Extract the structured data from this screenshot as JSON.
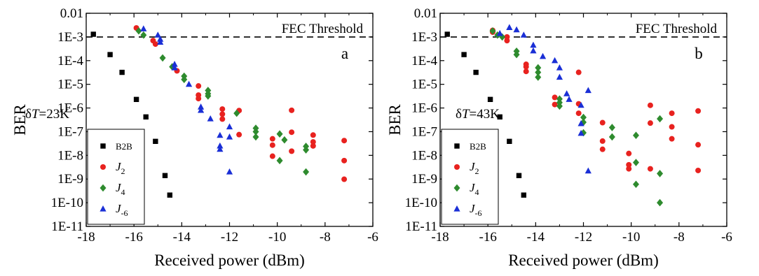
{
  "chart_data": [
    {
      "type": "scatter",
      "panel_label": "a",
      "annotation": "δT=23K",
      "threshold_label": "FEC Threshold",
      "threshold": 0.001,
      "xlabel": "Received power (dBm)",
      "ylabel": "BER",
      "xlim": [
        -18,
        -6
      ],
      "ylim": [
        1e-11,
        0.01
      ],
      "y_scale": "log",
      "x_ticks": [
        -18,
        -16,
        -14,
        -12,
        -10,
        -8,
        -6
      ],
      "x_tick_labels": [
        "-18",
        "-16",
        "-14",
        "-12",
        "-10",
        "-8",
        "-6"
      ],
      "y_ticks": [
        0.01,
        0.001,
        0.0001,
        1e-05,
        1e-06,
        1e-07,
        1e-08,
        1e-09,
        1e-10,
        1e-11
      ],
      "y_tick_labels": [
        "0.01",
        "1E-3",
        "1E-4",
        "1E-5",
        "1E-6",
        "1E-7",
        "1E-8",
        "1E-9",
        "1E-10",
        "1E-11"
      ],
      "legend_position": "bottom-left",
      "series": [
        {
          "name": "B2B",
          "marker": "square",
          "color": "#000000",
          "points": [
            [
              -17.7,
              0.0013
            ],
            [
              -17.0,
              0.00018
            ],
            [
              -16.5,
              3.2e-05
            ],
            [
              -15.9,
              2.3e-06
            ],
            [
              -15.5,
              4.2e-07
            ],
            [
              -15.1,
              3.9e-08
            ],
            [
              -14.7,
              1.4e-09
            ],
            [
              -14.5,
              2.1e-10
            ]
          ]
        },
        {
          "name": "J2",
          "marker": "circle",
          "color": "#e8221f",
          "points": [
            [
              -15.9,
              0.0024
            ],
            [
              -15.2,
              0.0007
            ],
            [
              -15.1,
              0.0005
            ],
            [
              -14.2,
              3.7e-05
            ],
            [
              -13.3,
              8.5e-06
            ],
            [
              -13.3,
              3.5e-06
            ],
            [
              -13.3,
              2.5e-06
            ],
            [
              -12.3,
              9e-07
            ],
            [
              -12.3,
              5.5e-07
            ],
            [
              -12.3,
              3.4e-07
            ],
            [
              -11.6,
              7.8e-07
            ],
            [
              -11.6,
              7.5e-08
            ],
            [
              -10.2,
              5e-08
            ],
            [
              -10.2,
              2.7e-08
            ],
            [
              -10.2,
              9.2e-09
            ],
            [
              -9.4,
              8e-07
            ],
            [
              -9.4,
              9.5e-08
            ],
            [
              -9.4,
              1.5e-08
            ],
            [
              -8.5,
              7.2e-08
            ],
            [
              -8.5,
              3.7e-08
            ],
            [
              -8.5,
              2.5e-08
            ],
            [
              -7.2,
              4.2e-08
            ],
            [
              -7.2,
              6e-09
            ],
            [
              -7.2,
              9.8e-10
            ]
          ]
        },
        {
          "name": "J4",
          "marker": "diamond",
          "color": "#2e8b2e",
          "points": [
            [
              -15.8,
              0.0018
            ],
            [
              -15.6,
              0.0012
            ],
            [
              -14.8,
              0.00013
            ],
            [
              -14.4,
              5.5e-05
            ],
            [
              -13.9,
              2.2e-05
            ],
            [
              -13.9,
              1.6e-05
            ],
            [
              -12.9,
              5.5e-06
            ],
            [
              -12.9,
              4e-06
            ],
            [
              -12.9,
              3.2e-06
            ],
            [
              -11.7,
              6e-07
            ],
            [
              -10.9,
              1.4e-07
            ],
            [
              -10.9,
              1e-07
            ],
            [
              -10.9,
              6e-08
            ],
            [
              -9.9,
              8e-08
            ],
            [
              -9.9,
              6e-09
            ],
            [
              -9.7,
              4.5e-08
            ],
            [
              -8.8,
              2.4e-08
            ],
            [
              -8.8,
              1.7e-08
            ],
            [
              -8.8,
              2e-09
            ]
          ]
        },
        {
          "name": "J-6",
          "marker": "triangle",
          "color": "#1a2fd6",
          "points": [
            [
              -15.6,
              0.0022
            ],
            [
              -15.0,
              0.0012
            ],
            [
              -14.9,
              0.0008
            ],
            [
              -14.9,
              0.0006
            ],
            [
              -14.3,
              7e-05
            ],
            [
              -14.3,
              5e-05
            ],
            [
              -13.7,
              1e-05
            ],
            [
              -13.2,
              1.1e-06
            ],
            [
              -13.2,
              8e-07
            ],
            [
              -12.8,
              3.5e-07
            ],
            [
              -12.4,
              7e-08
            ],
            [
              -12.4,
              2.5e-08
            ],
            [
              -12.4,
              1.8e-08
            ],
            [
              -12.0,
              1.6e-07
            ],
            [
              -12.0,
              6e-08
            ],
            [
              -12.0,
              2e-09
            ]
          ]
        }
      ]
    },
    {
      "type": "scatter",
      "panel_label": "b",
      "annotation": "δT=43K",
      "threshold_label": "FEC Threshold",
      "threshold": 0.001,
      "xlabel": "Received power (dBm)",
      "ylabel": "BER",
      "xlim": [
        -18,
        -6
      ],
      "ylim": [
        1e-11,
        0.01
      ],
      "y_scale": "log",
      "x_ticks": [
        -18,
        -16,
        -14,
        -12,
        -10,
        -8,
        -6
      ],
      "x_tick_labels": [
        "-18",
        "-16",
        "-14",
        "-12",
        "-10",
        "-8",
        "-6"
      ],
      "y_ticks": [
        0.01,
        0.001,
        0.0001,
        1e-05,
        1e-06,
        1e-07,
        1e-08,
        1e-09,
        1e-10,
        1e-11
      ],
      "y_tick_labels": [
        "0.01",
        "1E-3",
        "1E-4",
        "1E-5",
        "1E-6",
        "1E-7",
        "1E-8",
        "1E-9",
        "1E-10",
        "1E-11"
      ],
      "legend_position": "bottom-left",
      "series": [
        {
          "name": "B2B",
          "marker": "square",
          "color": "#000000",
          "points": [
            [
              -17.7,
              0.0013
            ],
            [
              -17.0,
              0.00018
            ],
            [
              -16.5,
              3.2e-05
            ],
            [
              -15.9,
              2.3e-06
            ],
            [
              -15.5,
              4.2e-07
            ],
            [
              -15.1,
              3.9e-08
            ],
            [
              -14.7,
              1.4e-09
            ],
            [
              -14.5,
              2.1e-10
            ]
          ]
        },
        {
          "name": "J2",
          "marker": "circle",
          "color": "#e8221f",
          "points": [
            [
              -15.8,
              0.0019
            ],
            [
              -15.8,
              0.0016
            ],
            [
              -15.2,
              0.001
            ],
            [
              -15.2,
              0.0007
            ],
            [
              -14.4,
              7e-05
            ],
            [
              -14.4,
              5.5e-05
            ],
            [
              -14.4,
              3.5e-05
            ],
            [
              -13.2,
              2.8e-06
            ],
            [
              -13.2,
              1.4e-06
            ],
            [
              -12.2,
              3.2e-05
            ],
            [
              -12.2,
              1.5e-06
            ],
            [
              -12.2,
              6e-07
            ],
            [
              -11.2,
              2.4e-07
            ],
            [
              -11.2,
              4e-08
            ],
            [
              -11.2,
              1.8e-08
            ],
            [
              -10.1,
              1.2e-08
            ],
            [
              -10.1,
              4e-09
            ],
            [
              -10.1,
              2.7e-09
            ],
            [
              -9.2,
              1.3e-06
            ],
            [
              -9.2,
              2.3e-07
            ],
            [
              -9.2,
              2.7e-09
            ],
            [
              -8.3,
              6e-07
            ],
            [
              -8.3,
              1.6e-07
            ],
            [
              -8.3,
              5e-08
            ],
            [
              -7.2,
              7.5e-07
            ],
            [
              -7.2,
              2.8e-08
            ],
            [
              -7.2,
              2.3e-09
            ]
          ]
        },
        {
          "name": "J4",
          "marker": "diamond",
          "color": "#2e8b2e",
          "points": [
            [
              -15.8,
              0.0018
            ],
            [
              -15.6,
              0.0012
            ],
            [
              -15.4,
              0.001
            ],
            [
              -14.8,
              0.00025
            ],
            [
              -14.8,
              0.00018
            ],
            [
              -13.9,
              5e-05
            ],
            [
              -13.9,
              3.2e-05
            ],
            [
              -13.9,
              2e-05
            ],
            [
              -13.0,
              2.4e-06
            ],
            [
              -13.0,
              1.7e-06
            ],
            [
              -13.0,
              1.2e-06
            ],
            [
              -12.0,
              4e-07
            ],
            [
              -12.0,
              2.5e-07
            ],
            [
              -12.0,
              9e-08
            ],
            [
              -10.8,
              1.5e-07
            ],
            [
              -10.8,
              6e-08
            ],
            [
              -9.8,
              7e-08
            ],
            [
              -9.8,
              5e-09
            ],
            [
              -9.8,
              6e-10
            ],
            [
              -8.8,
              3.5e-07
            ],
            [
              -8.8,
              1.7e-09
            ],
            [
              -8.8,
              1e-10
            ]
          ]
        },
        {
          "name": "J-6",
          "marker": "triangle",
          "color": "#1a2fd6",
          "points": [
            [
              -15.5,
              0.0014
            ],
            [
              -15.1,
              0.0025
            ],
            [
              -14.8,
              0.002
            ],
            [
              -14.5,
              0.0012
            ],
            [
              -14.1,
              0.00045
            ],
            [
              -14.1,
              0.00026
            ],
            [
              -13.7,
              0.00015
            ],
            [
              -13.2,
              0.0001
            ],
            [
              -13.0,
              5e-05
            ],
            [
              -13.0,
              2e-05
            ],
            [
              -12.7,
              4e-06
            ],
            [
              -12.6,
              2.3e-06
            ],
            [
              -12.1,
              1.3e-06
            ],
            [
              -12.1,
              2.2e-07
            ],
            [
              -12.1,
              8.5e-08
            ],
            [
              -11.8,
              5.5e-06
            ],
            [
              -11.8,
              2.2e-09
            ]
          ]
        }
      ]
    }
  ]
}
